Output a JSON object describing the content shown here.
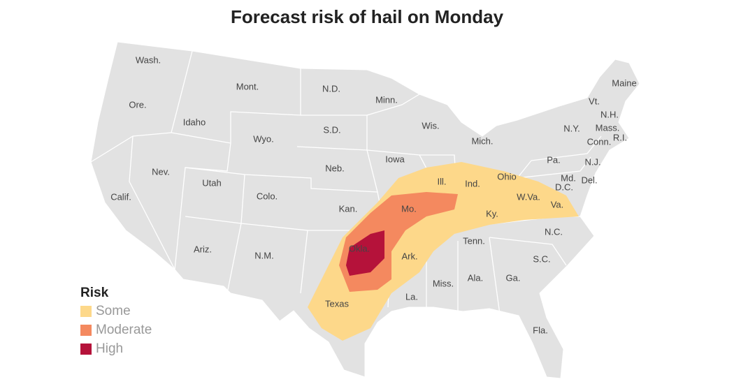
{
  "title": "Forecast risk of hail on Monday",
  "states": [
    "Wash.",
    "Ore.",
    "Calif.",
    "Idaho",
    "Nev.",
    "Mont.",
    "Wyo.",
    "Utah",
    "Ariz.",
    "Colo.",
    "N.M.",
    "N.D.",
    "S.D.",
    "Neb.",
    "Kan.",
    "Okla.",
    "Texas",
    "Minn.",
    "Iowa",
    "Mo.",
    "Ark.",
    "La.",
    "Wis.",
    "Ill.",
    "Miss.",
    "Mich.",
    "Ind.",
    "Ky.",
    "Tenn.",
    "Ala.",
    "Ohio",
    "Ga.",
    "Fla.",
    "S.C.",
    "N.C.",
    "W.Va.",
    "Va.",
    "Pa.",
    "Md.",
    "D.C.",
    "Del.",
    "N.J.",
    "N.Y.",
    "Conn.",
    "R.I.",
    "Mass.",
    "Vt.",
    "N.H.",
    "Maine"
  ],
  "legend": {
    "title": "Risk",
    "items": [
      {
        "label": "Some",
        "color": "#fdd88a"
      },
      {
        "label": "Moderate",
        "color": "#f4895f"
      },
      {
        "label": "High",
        "color": "#b5123a"
      }
    ]
  }
}
